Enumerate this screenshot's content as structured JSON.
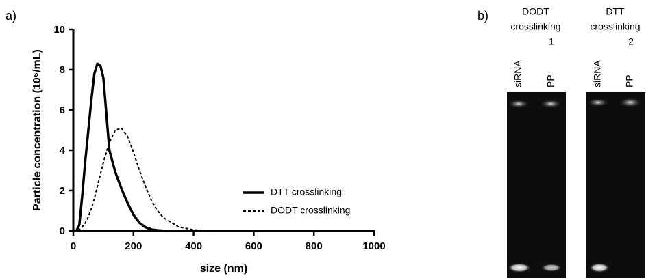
{
  "chart_data": {
    "type": "line",
    "x_label": "size (nm)",
    "y_label": "Particle concentration (10⁶/mL)",
    "x": [
      0,
      10,
      20,
      30,
      40,
      50,
      60,
      70,
      80,
      90,
      100,
      120,
      140,
      160,
      180,
      200,
      220,
      240,
      260,
      280,
      300,
      350,
      400,
      500,
      600,
      800,
      1000
    ],
    "series": [
      {
        "name": "DTT crosslinking",
        "color": "#000000",
        "line_style": "solid",
        "values": [
          0,
          0,
          0.3,
          1.8,
          3.5,
          5.0,
          6.5,
          7.8,
          8.3,
          8.2,
          7.6,
          4.0,
          2.9,
          2.1,
          1.4,
          0.8,
          0.4,
          0.18,
          0.07,
          0.03,
          0.01,
          0,
          0,
          0,
          0,
          0,
          0
        ]
      },
      {
        "name": "DODT crosslinking",
        "color": "#000000",
        "line_style": "dashed",
        "values": [
          0,
          0,
          0.05,
          0.2,
          0.4,
          0.7,
          1.1,
          1.6,
          2.2,
          2.8,
          3.4,
          4.4,
          5.0,
          5.1,
          4.7,
          3.9,
          3.0,
          2.2,
          1.5,
          1.0,
          0.65,
          0.2,
          0.05,
          0,
          0,
          0,
          0
        ]
      }
    ],
    "xlim": [
      0,
      1000
    ],
    "xticks": [
      0,
      200,
      400,
      600,
      800,
      1000
    ],
    "ylim": [
      0,
      10
    ],
    "yticks": [
      0,
      2,
      4,
      6,
      8,
      10
    ],
    "grid": false,
    "legend": "lower right"
  },
  "panel_labels": [
    "a)",
    "b)"
  ],
  "gel": {
    "groups": [
      {
        "label": [
          "DODT",
          "crosslinking",
          "1"
        ],
        "lanes": [
          "siRNA",
          "PP"
        ]
      },
      {
        "label": [
          "DTT",
          "crosslinking",
          "2"
        ],
        "lanes": [
          "siRNA",
          "PP"
        ]
      }
    ]
  }
}
